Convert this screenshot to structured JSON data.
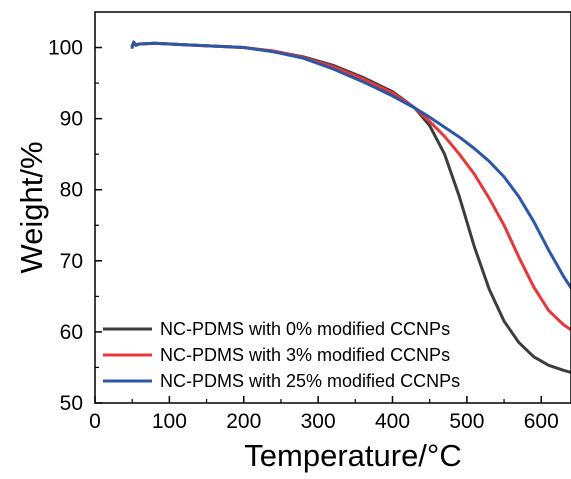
{
  "chart_data": {
    "type": "line",
    "xlabel": "Temperature/°C",
    "ylabel": "Weight/%",
    "xlim": [
      0,
      640
    ],
    "ylim": [
      50,
      105
    ],
    "xticks": [
      0,
      100,
      200,
      300,
      400,
      500,
      600
    ],
    "yticks": [
      50,
      60,
      70,
      80,
      90,
      100
    ],
    "grid": false,
    "legend_position": "bottom-left",
    "series": [
      {
        "name": "NC-PDMS with 0% modified CCNPs",
        "color": "#3d3d3d",
        "x": [
          50,
          52,
          55,
          60,
          80,
          120,
          160,
          200,
          240,
          280,
          320,
          360,
          400,
          430,
          450,
          470,
          490,
          510,
          530,
          550,
          570,
          590,
          610,
          630,
          640
        ],
        "y": [
          100.2,
          100.6,
          100.4,
          100.5,
          100.6,
          100.4,
          100.2,
          100.0,
          99.5,
          98.7,
          97.5,
          95.8,
          93.8,
          91.5,
          89.0,
          85.0,
          79.0,
          72.0,
          66.0,
          61.5,
          58.5,
          56.5,
          55.3,
          54.6,
          54.3
        ]
      },
      {
        "name": "NC-PDMS with 3% modified CCNPs",
        "color": "#e8363b",
        "x": [
          50,
          52,
          55,
          60,
          80,
          120,
          160,
          200,
          240,
          280,
          320,
          360,
          400,
          430,
          450,
          470,
          490,
          510,
          530,
          550,
          570,
          590,
          610,
          630,
          640
        ],
        "y": [
          100.3,
          100.6,
          100.4,
          100.5,
          100.6,
          100.4,
          100.2,
          100.0,
          99.5,
          98.6,
          97.3,
          95.6,
          93.6,
          91.5,
          89.6,
          87.5,
          85.0,
          82.2,
          78.8,
          75.0,
          70.5,
          66.3,
          63.0,
          61.0,
          60.3
        ]
      },
      {
        "name": "NC-PDMS with 25% modified CCNPs",
        "color": "#2e56a6",
        "x": [
          50,
          52,
          55,
          60,
          80,
          120,
          160,
          200,
          240,
          280,
          320,
          360,
          400,
          430,
          450,
          470,
          490,
          510,
          530,
          550,
          570,
          590,
          610,
          630,
          640
        ],
        "y": [
          100.0,
          100.8,
          100.3,
          100.5,
          100.6,
          100.4,
          100.2,
          100.0,
          99.4,
          98.5,
          97.0,
          95.2,
          93.2,
          91.5,
          90.2,
          88.8,
          87.4,
          85.8,
          84.0,
          81.8,
          79.0,
          75.5,
          71.5,
          67.8,
          66.2
        ]
      }
    ]
  }
}
